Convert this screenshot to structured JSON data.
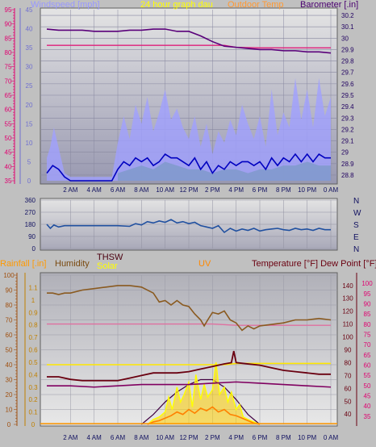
{
  "top_header": {
    "windspeed_label": "Windspeed [mph]",
    "title": "24 hour graph dau",
    "outdoor_temp_label": "Outdoor Temp",
    "barometer_label": "Barometer [.in]"
  },
  "bottom_header": {
    "rainfall_label": "Rainfall [.in]",
    "humidity_label": "Humidity",
    "thsw_label": "THSW",
    "solar_label": "Solar",
    "uv_label": "UV",
    "temp_label": "Temperature [°F] Dew Point [°F]"
  },
  "colors": {
    "background": "#c0c0c0",
    "plot_top": "#b8b8c8",
    "plot_bottom": "#dcdcdc",
    "wind_avg": "#0000c0",
    "wind_gust": "#a0a0ff",
    "wind_green": "#008000",
    "barometer": "#5a007a",
    "outdoor_temp": "#e0207a",
    "wind_dir": "#2050a0",
    "humidity": "#8a5a20",
    "thsw": "#6a0010",
    "solar": "#ffff00",
    "solar_line": "#ffe800",
    "uv": "#ff8000",
    "temperature": "#800060",
    "dew_point": "#e070a0",
    "rainfall": "#ffcc00",
    "axis_pink": "#e00070",
    "axis_brown": "#a05010",
    "axis_dark": "#200060"
  },
  "chart_data": [
    {
      "type": "line",
      "title": "24 hour graph dau",
      "xlabel": "",
      "x_ticks": [
        "2 AM",
        "4 AM",
        "6 AM",
        "8 AM",
        "10 AM",
        "12 PM",
        "2 PM",
        "4 PM",
        "6 PM",
        "8 PM",
        "10 PM",
        "0 AM"
      ],
      "left_axis": {
        "label": "Windspeed [mph]",
        "ticks": [
          0,
          5,
          10,
          15,
          20,
          25,
          30,
          35,
          40,
          45
        ],
        "ylim": [
          0,
          45
        ]
      },
      "left_axis2": {
        "label": "",
        "ticks": [
          35,
          40,
          45,
          50,
          55,
          60,
          65,
          70,
          75,
          80,
          85,
          90,
          95
        ],
        "ylim": [
          35,
          95
        ]
      },
      "right_axis": {
        "label": "Barometer [.in]",
        "ticks": [
          "28.8",
          "28.9",
          "29",
          "29.1",
          "29.2",
          "29.3",
          "29.4",
          "29.5",
          "29.6",
          "29.7",
          "29.8",
          "29.9",
          "30",
          "30.1",
          "30.2"
        ],
        "ylim": [
          28.75,
          30.25
        ]
      },
      "grid": true,
      "series": [
        {
          "name": "Barometer [.in]",
          "axis": "right",
          "x": [
            0,
            1,
            2,
            3,
            4,
            5,
            6,
            7,
            8,
            9,
            10,
            11,
            12,
            13,
            14,
            15,
            16,
            17,
            18,
            19,
            20,
            21,
            22,
            23,
            24
          ],
          "y": [
            30.08,
            30.07,
            30.07,
            30.07,
            30.06,
            30.06,
            30.06,
            30.07,
            30.07,
            30.08,
            30.08,
            30.06,
            30.06,
            30.02,
            29.97,
            29.93,
            29.92,
            29.91,
            29.9,
            29.9,
            29.89,
            29.89,
            29.88,
            29.88,
            29.87
          ]
        },
        {
          "name": "Outdoor Temp",
          "axis": "left2",
          "x": [
            0,
            2,
            4,
            6,
            8,
            10,
            12,
            14,
            15,
            16,
            18,
            20,
            22,
            24
          ],
          "y": [
            82.5,
            82.5,
            82.5,
            82.5,
            82.5,
            82.5,
            82.5,
            82.5,
            82.5,
            81.8,
            81.6,
            81.6,
            81.6,
            81.6
          ]
        },
        {
          "name": "Wind gust",
          "axis": "left",
          "x": [
            0,
            0.3,
            0.6,
            0.9,
            1.2,
            1.5,
            2,
            3,
            4,
            5.5,
            6,
            6.5,
            7,
            7.5,
            8,
            8.5,
            9,
            9.5,
            10,
            10.5,
            11,
            11.5,
            12,
            12.5,
            13,
            13.5,
            14,
            14.5,
            15,
            15.5,
            16,
            16.5,
            17,
            17.5,
            18,
            18.5,
            19,
            19.5,
            20,
            20.5,
            21,
            21.5,
            22,
            22.5,
            23,
            23.5,
            24
          ],
          "y": [
            6,
            9,
            14,
            10,
            6,
            2,
            1,
            1,
            1,
            1,
            10,
            17,
            11,
            20,
            15,
            22,
            13,
            18,
            24,
            16,
            19,
            14,
            11,
            17,
            9,
            15,
            7,
            13,
            10,
            16,
            12,
            20,
            15,
            11,
            17,
            9,
            24,
            12,
            18,
            14,
            27,
            16,
            24,
            14,
            27,
            17,
            22
          ]
        },
        {
          "name": "Wind avg",
          "axis": "left",
          "x": [
            0,
            0.5,
            1,
            1.5,
            2,
            3,
            4,
            5.5,
            6,
            6.5,
            7,
            7.5,
            8,
            8.5,
            9,
            9.5,
            10,
            10.5,
            11,
            11.5,
            12,
            12.5,
            13,
            13.5,
            14,
            14.5,
            15,
            15.5,
            16,
            16.5,
            17,
            17.5,
            18,
            18.5,
            19,
            19.5,
            20,
            20.5,
            21,
            21.5,
            22,
            22.5,
            23,
            23.5,
            24
          ],
          "y": [
            2,
            4,
            3,
            1,
            0,
            0,
            0,
            0,
            3,
            5,
            4,
            6,
            5,
            6,
            4,
            5,
            7,
            6,
            6,
            5,
            4,
            6,
            3,
            5,
            2,
            4,
            3,
            5,
            4,
            5,
            5,
            4,
            5,
            3,
            6,
            4,
            6,
            5,
            7,
            5,
            7,
            5,
            7,
            6,
            6
          ]
        },
        {
          "name": "Wind green",
          "axis": "left",
          "x": [
            6,
            7,
            8,
            9,
            10,
            11,
            12,
            13,
            14,
            15,
            16,
            17,
            18,
            19,
            20,
            21,
            22,
            23,
            24
          ],
          "y": [
            2,
            3,
            4,
            3,
            5,
            4,
            3,
            3,
            2,
            3,
            3,
            2,
            3,
            3,
            4,
            4,
            5,
            4,
            4
          ]
        }
      ]
    },
    {
      "type": "line",
      "title": "",
      "xlabel": "",
      "left_axis": {
        "label": "",
        "ticks": [
          0,
          90,
          180,
          270,
          360
        ],
        "ylim": [
          0,
          360
        ]
      },
      "right_axis": {
        "label": "",
        "ticks": [
          "N",
          "W",
          "S",
          "E",
          "N"
        ]
      },
      "grid": true,
      "series": [
        {
          "name": "Wind direction",
          "axis": "left",
          "x": [
            0,
            0.3,
            0.6,
            1,
            1.5,
            2,
            3,
            4,
            5,
            6,
            7,
            7.5,
            8,
            8.5,
            9,
            9.5,
            10,
            10.5,
            11,
            11.5,
            12,
            12.5,
            13,
            13.5,
            14,
            14.5,
            15,
            15.5,
            16,
            16.5,
            17,
            17.5,
            18,
            18.5,
            19,
            19.5,
            20,
            20.5,
            21,
            21.5,
            22,
            22.5,
            23,
            23.5,
            24
          ],
          "y": [
            180,
            150,
            175,
            160,
            170,
            170,
            170,
            170,
            170,
            170,
            165,
            185,
            175,
            200,
            190,
            205,
            195,
            215,
            190,
            200,
            185,
            195,
            170,
            160,
            150,
            170,
            120,
            150,
            130,
            145,
            135,
            150,
            130,
            140,
            145,
            150,
            140,
            135,
            150,
            140,
            145,
            135,
            150,
            140,
            140
          ]
        }
      ]
    },
    {
      "type": "line",
      "title": "",
      "xlabel": "",
      "x_ticks": [
        "2 AM",
        "4 AM",
        "6 AM",
        "8 AM",
        "10 AM",
        "12 PM",
        "2 PM",
        "4 PM",
        "6 PM",
        "8 PM",
        "10 PM",
        "0 AM"
      ],
      "axes": {
        "humidity": {
          "label": "Humidity",
          "ticks": [
            0,
            10,
            20,
            30,
            40,
            50,
            60,
            70,
            80,
            90,
            100
          ],
          "ylim": [
            0,
            100
          ]
        },
        "rainfall": {
          "label": "Rainfall [.in]",
          "ticks": [
            "0",
            "0.1",
            "0.2",
            "0.3",
            "0.4",
            "0.5",
            "0.6",
            "0.7",
            "0.8",
            "0.9",
            "1",
            "1.1"
          ],
          "ylim": [
            0,
            1.2
          ]
        },
        "temperature": {
          "label": "Temperature [°F] Dew Point [°F]",
          "ticks": [
            40,
            50,
            60,
            70,
            80,
            90,
            100,
            110,
            120,
            130,
            140
          ],
          "ylim": [
            32,
            148
          ]
        },
        "dew_point": {
          "label": "",
          "ticks": [
            35,
            40,
            45,
            50,
            55,
            60,
            65,
            70,
            75,
            80,
            85,
            90,
            95,
            100
          ],
          "ylim": [
            31,
            104
          ]
        }
      },
      "grid": true,
      "series": [
        {
          "name": "Humidity",
          "axis": "humidity",
          "x": [
            0,
            0.5,
            1,
            1.5,
            2,
            3,
            4,
            5,
            6,
            7,
            8,
            9,
            9.5,
            10,
            10.5,
            11,
            11.5,
            12,
            12.5,
            13,
            13.3,
            13.6,
            14,
            14.5,
            15,
            15.5,
            16,
            16.5,
            17,
            17.5,
            18,
            19,
            20,
            21,
            22,
            23,
            24
          ],
          "y": [
            88,
            88,
            87,
            88,
            88,
            90,
            91,
            92,
            93,
            93,
            92,
            88,
            82,
            83,
            80,
            83,
            80,
            79,
            74,
            70,
            66,
            70,
            75,
            74,
            76,
            70,
            68,
            63,
            66,
            64,
            66,
            67,
            68,
            70,
            70,
            71,
            70
          ]
        },
        {
          "name": "Dew point",
          "axis": "temperature",
          "x": [
            0,
            2,
            4,
            6,
            8,
            10,
            12,
            14,
            16,
            18,
            20,
            22,
            24
          ],
          "y": [
            110,
            110,
            110,
            110,
            110,
            110,
            110,
            110,
            109,
            109,
            109,
            109,
            109
          ]
        },
        {
          "name": "THSW",
          "axis": "temperature",
          "x": [
            0,
            1,
            2,
            3,
            4,
            5,
            6,
            7,
            8,
            9,
            10,
            11,
            12,
            13,
            14,
            15,
            15.6,
            15.8,
            16,
            17,
            18,
            19,
            20,
            21,
            22,
            23,
            24
          ],
          "y": [
            69,
            69,
            67,
            66,
            66,
            66,
            66,
            68,
            70,
            72,
            72,
            72,
            73,
            75,
            77,
            79,
            80,
            89,
            80,
            79,
            78,
            76,
            74,
            73,
            72,
            71,
            71
          ]
        },
        {
          "name": "Temperature",
          "axis": "temperature",
          "x": [
            0,
            2,
            4,
            6,
            8,
            10,
            12,
            14,
            16,
            18,
            20,
            22,
            24
          ],
          "y": [
            62,
            62,
            61,
            62,
            63,
            63,
            63,
            64,
            65,
            64,
            63,
            62,
            61
          ]
        },
        {
          "name": "Solar",
          "axis": "rainfall",
          "x": [
            0,
            2,
            4,
            6,
            8,
            10,
            12,
            14,
            15,
            16,
            18,
            20,
            22,
            24
          ],
          "y": [
            0.48,
            0.48,
            0.48,
            0.48,
            0.48,
            0.48,
            0.48,
            0.48,
            0.48,
            0.49,
            0.49,
            0.49,
            0.49,
            0.49
          ]
        },
        {
          "name": "Solar radiation",
          "axis": "rainfall",
          "x": [
            8.5,
            9,
            9.5,
            10,
            10.3,
            10.6,
            11,
            11.3,
            11.6,
            12,
            12.3,
            12.6,
            13,
            13.3,
            13.6,
            14,
            14.3,
            14.6,
            15,
            15.3,
            15.6,
            16,
            16.3,
            16.6,
            17,
            17.5,
            18
          ],
          "y": [
            0,
            0.04,
            0.06,
            0.1,
            0.22,
            0.12,
            0.3,
            0.18,
            0.24,
            0.34,
            0.14,
            0.4,
            0.2,
            0.32,
            0.22,
            0.28,
            0.5,
            0.24,
            0.3,
            0.18,
            0.26,
            0.12,
            0.16,
            0.06,
            0.04,
            0.02,
            0
          ]
        },
        {
          "name": "UV",
          "axis": "rainfall",
          "x": [
            8.5,
            9,
            9.5,
            10,
            10.5,
            11,
            11.5,
            12,
            12.5,
            13,
            13.5,
            14,
            14.5,
            15,
            15.5,
            16,
            16.5,
            17,
            17.5,
            18
          ],
          "y": [
            0,
            0.02,
            0.03,
            0.05,
            0.07,
            0.1,
            0.08,
            0.12,
            0.09,
            0.13,
            0.11,
            0.14,
            0.1,
            0.12,
            0.08,
            0.07,
            0.05,
            0.03,
            0.01,
            0
          ]
        },
        {
          "name": "Sun curve",
          "axis": "rainfall",
          "x": [
            8,
            9,
            10,
            11,
            12,
            13,
            14,
            15,
            16,
            17,
            18
          ],
          "y": [
            0,
            0.08,
            0.18,
            0.26,
            0.32,
            0.36,
            0.36,
            0.3,
            0.2,
            0.08,
            0
          ]
        }
      ]
    }
  ]
}
